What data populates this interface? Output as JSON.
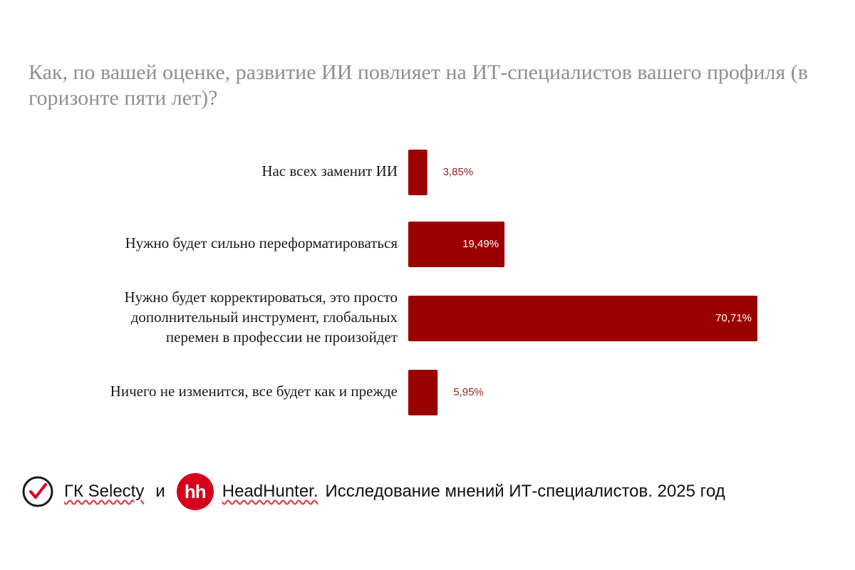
{
  "chart_data": {
    "type": "bar",
    "orientation": "horizontal",
    "title": "Как, по вашей оценке, развитие ИИ повлияет на ИТ-специалистов вашего профиля (в горизонте пяти лет)?",
    "categories": [
      [
        "Нас всех заменит ИИ"
      ],
      [
        "Нужно будет сильно переформатироваться"
      ],
      [
        "Нужно будет корректироваться, это просто",
        "дополнительный инструмент, глобальных",
        "перемен в профессии не произойдет"
      ],
      [
        "Ничего не изменится, все будет как и прежде"
      ]
    ],
    "values": [
      3.85,
      19.49,
      70.71,
      5.95
    ],
    "value_labels": [
      "3,85%",
      "19,49%",
      "70,71%",
      "5,95%"
    ],
    "xlim": [
      0,
      70.71
    ],
    "grid": false,
    "legend": "none",
    "bar_color": "#9b0000"
  },
  "footer": {
    "brand1": "ГК Selecty",
    "connector": "и",
    "hh_logo": "hh",
    "brand2": "HeadHunter.",
    "study": "Исследование мнений ИТ-специалистов. 2025 год"
  },
  "icons": {
    "selecty": "check-circle-icon",
    "headhunter": "hh-logo"
  }
}
